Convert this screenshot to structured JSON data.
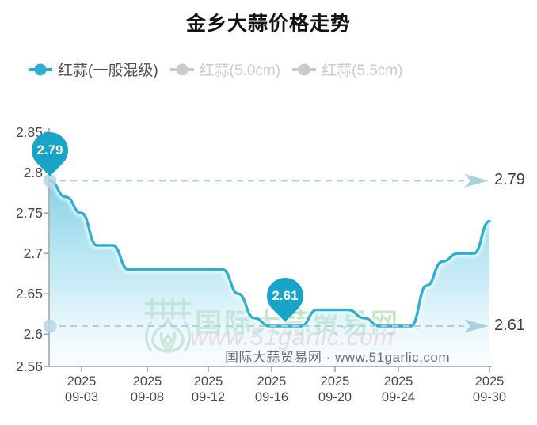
{
  "title": "金乡大蒜价格走势",
  "colors": {
    "series_line": "#2bb0d4",
    "marker_pin": "#18a3c9",
    "inactive_legend": "#cbcbcb",
    "dashed_reference": "#a6d3e2",
    "arrow": "#a3cbdc",
    "axis": "#999fa5",
    "area_top": "#7ecfe3",
    "area_mid": "#a6dff0",
    "area_bottom": "#e8f6fa"
  },
  "legend": {
    "items": [
      {
        "label": "红蒜(一般混级)",
        "active": true
      },
      {
        "label": "红蒜(5.0cm)",
        "active": false
      },
      {
        "label": "红蒜(5.5cm)",
        "active": false
      }
    ]
  },
  "watermark": {
    "brand_cn": "国际大蒜贸易网",
    "brand_url": "www.51garlic.com",
    "footer": "国际大蒜贸易网 · www.51garlic.com"
  },
  "chart_data": {
    "type": "line",
    "title": "金乡大蒜价格走势",
    "legend_position": "top",
    "grid": false,
    "smooth": true,
    "ylim": [
      2.56,
      2.85
    ],
    "y_ticks": [
      "2.85",
      "2.8",
      "2.75",
      "2.7",
      "2.65",
      "2.6",
      "2.56"
    ],
    "x": [
      "2025-09-02",
      "2025-09-03",
      "2025-09-04",
      "2025-09-05",
      "2025-09-06",
      "2025-09-07",
      "2025-09-08",
      "2025-09-09",
      "2025-09-10",
      "2025-09-11",
      "2025-09-12",
      "2025-09-13",
      "2025-09-14",
      "2025-09-15",
      "2025-09-16",
      "2025-09-17",
      "2025-09-18",
      "2025-09-19",
      "2025-09-20",
      "2025-09-21",
      "2025-09-22",
      "2025-09-23",
      "2025-09-24",
      "2025-09-25",
      "2025-09-26",
      "2025-09-27",
      "2025-09-28",
      "2025-09-29",
      "2025-09-30"
    ],
    "x_ticks": [
      {
        "line1": "2025",
        "line2": "09-03"
      },
      {
        "line1": "2025",
        "line2": "09-08"
      },
      {
        "line1": "2025",
        "line2": "09-12"
      },
      {
        "line1": "2025",
        "line2": "09-16"
      },
      {
        "line1": "2025",
        "line2": "09-20"
      },
      {
        "line1": "2025",
        "line2": "09-24"
      },
      {
        "line1": "2025",
        "line2": "09-30"
      }
    ],
    "series": [
      {
        "name": "红蒜(一般混级)",
        "values": [
          2.79,
          2.77,
          2.75,
          2.71,
          2.71,
          2.68,
          2.68,
          2.68,
          2.68,
          2.68,
          2.68,
          2.68,
          2.65,
          2.62,
          2.61,
          2.61,
          2.61,
          2.63,
          2.63,
          2.63,
          2.62,
          2.61,
          2.61,
          2.61,
          2.66,
          2.69,
          2.7,
          2.7,
          2.74
        ]
      }
    ],
    "inactive_series": [
      "红蒜(5.0cm)",
      "红蒜(5.5cm)"
    ],
    "markers": {
      "max": {
        "value": "2.79",
        "x": "2025-09-02"
      },
      "min": {
        "value": "2.61",
        "x": "2025-09-17"
      }
    },
    "reference_lines": [
      {
        "value": "2.79",
        "label": "2.79"
      },
      {
        "value": "2.61",
        "label": "2.61"
      }
    ]
  }
}
